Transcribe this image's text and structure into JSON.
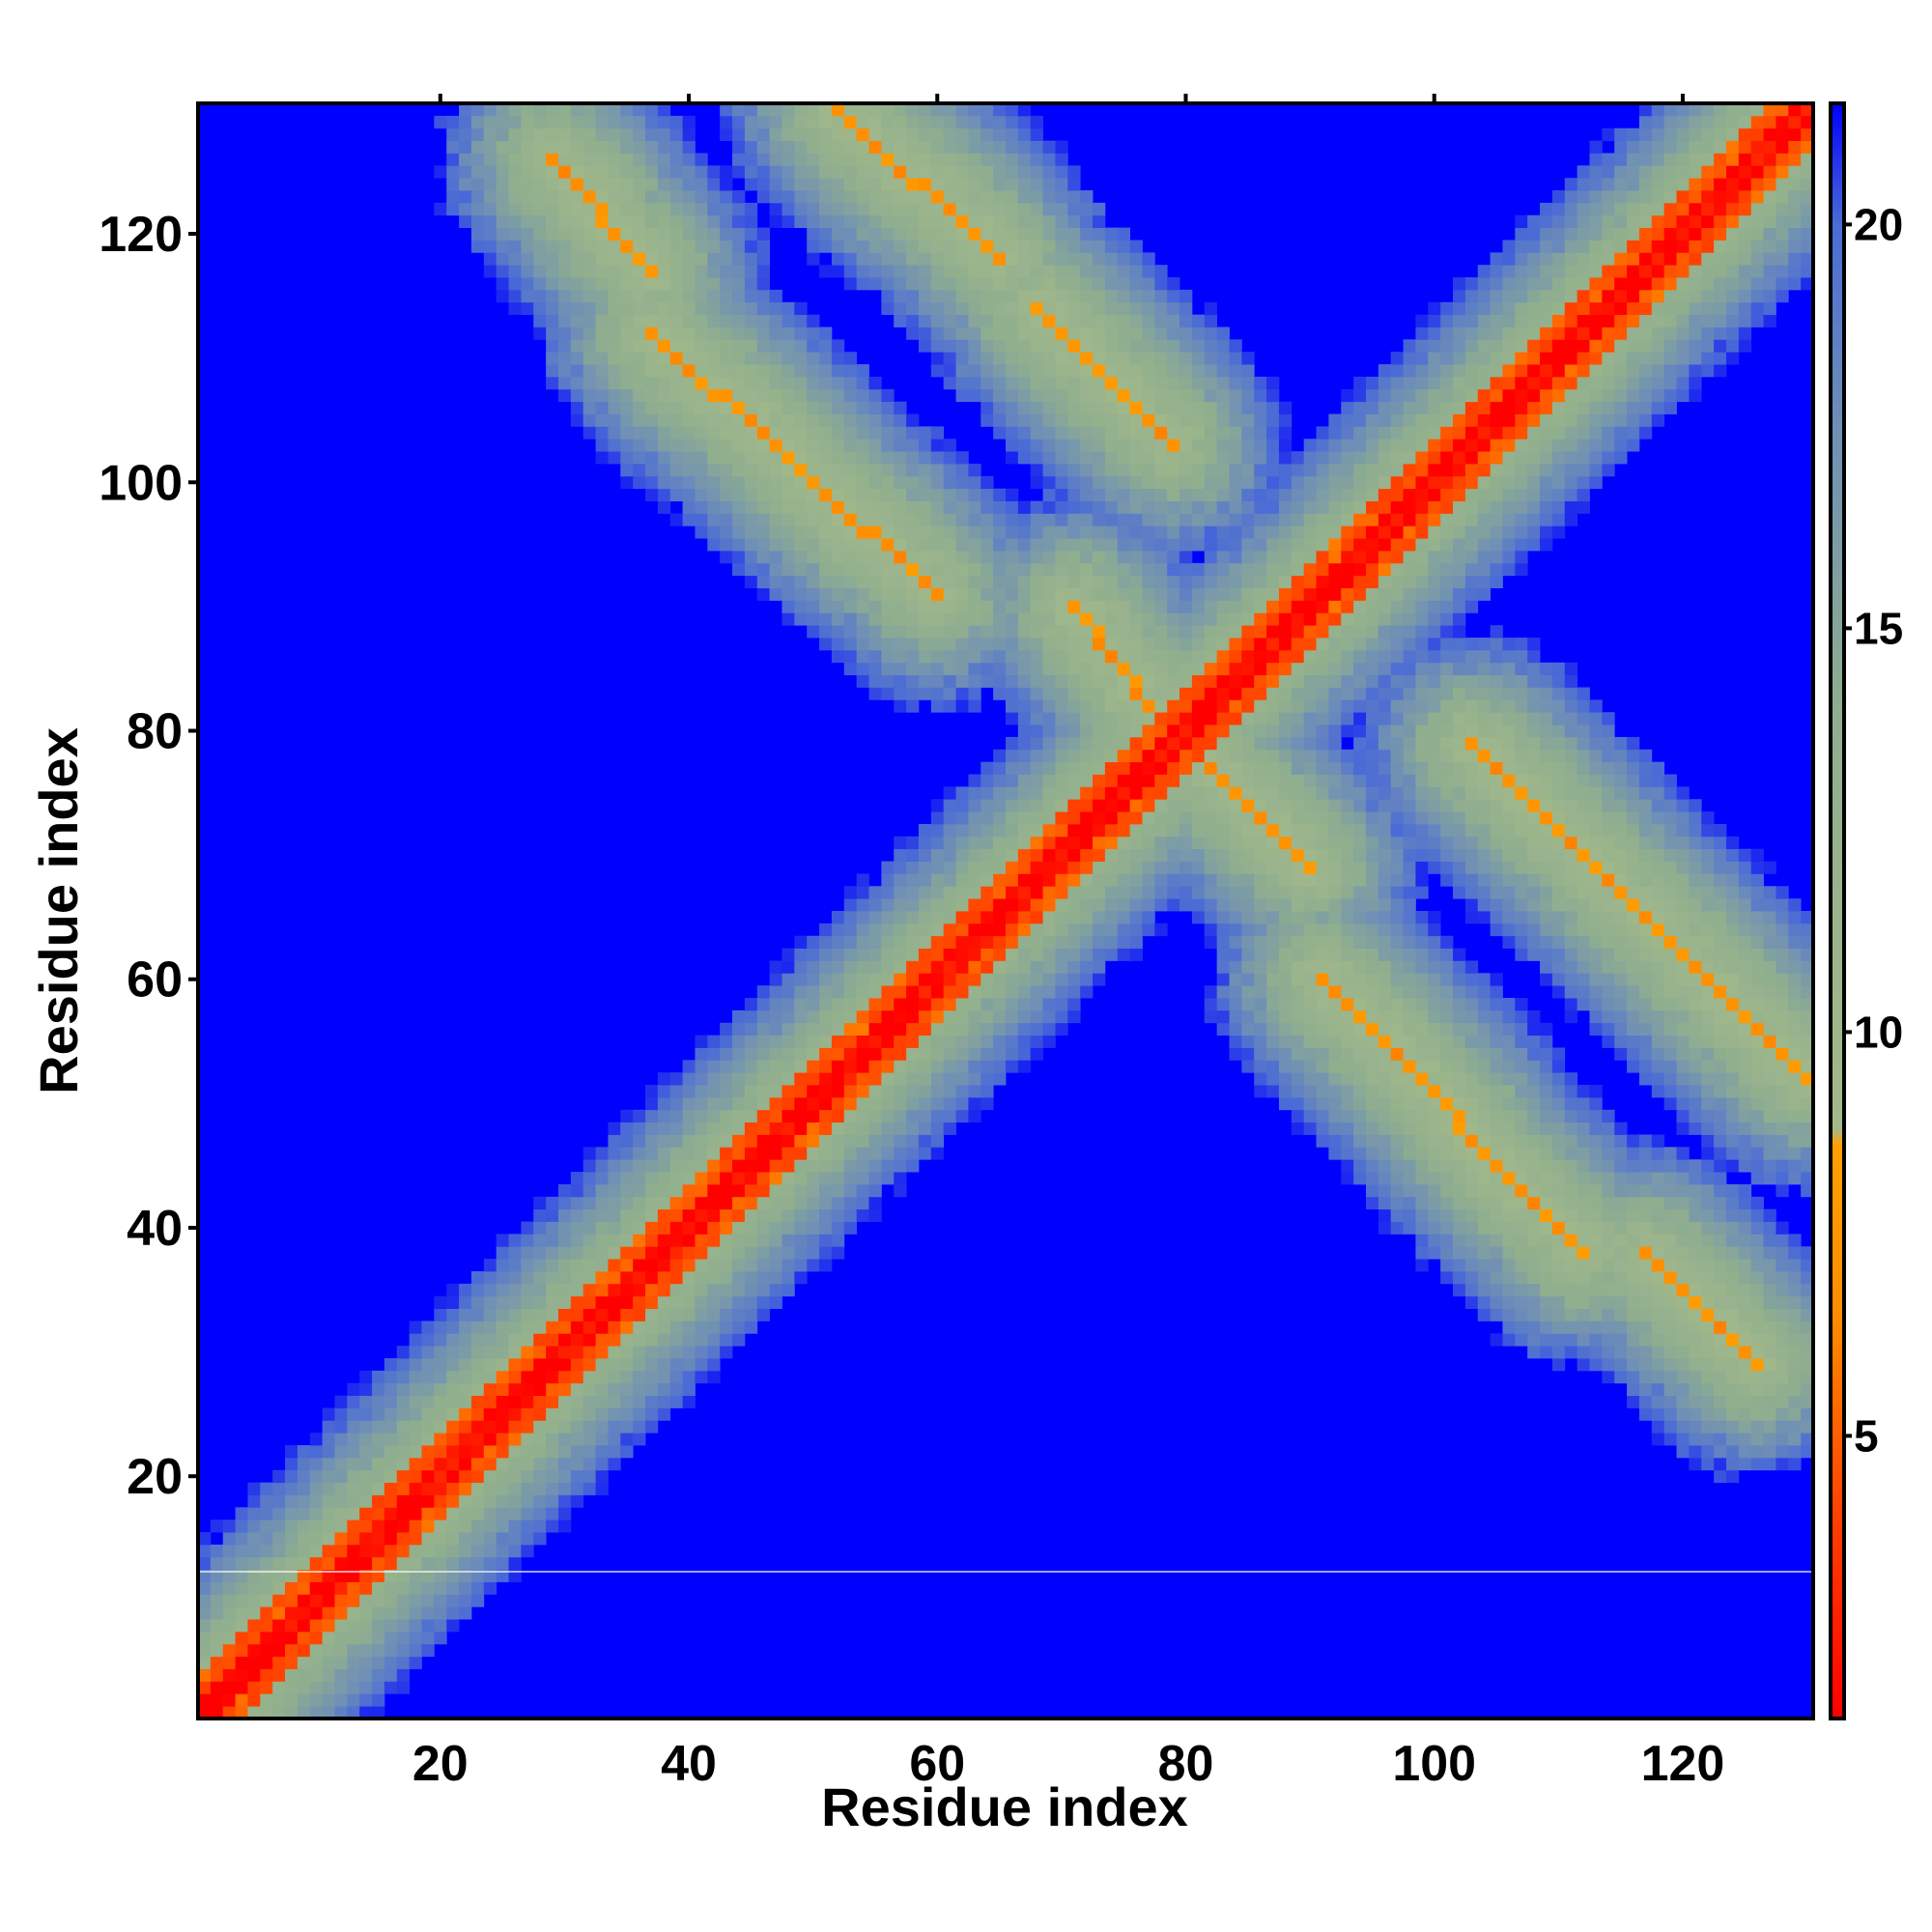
{
  "chart_data": {
    "type": "heatmap",
    "title": "",
    "xlabel": "Residue index",
    "ylabel": "Residue index",
    "n_residues": 130,
    "xlim": [
      1,
      130
    ],
    "ylim": [
      1,
      130
    ],
    "x_ticks": [
      20,
      40,
      60,
      80,
      100,
      120
    ],
    "y_ticks": [
      20,
      40,
      60,
      80,
      100,
      120
    ],
    "colorbar": {
      "range": [
        1.5,
        21.5
      ],
      "ticks": [
        5,
        10,
        15,
        20
      ],
      "stops": [
        {
          "value": 1.5,
          "color": "#ff0000"
        },
        {
          "value": 4.0,
          "color": "#ff4000"
        },
        {
          "value": 6.5,
          "color": "#ff8c00"
        },
        {
          "value": 8.6,
          "color": "#ffa000"
        },
        {
          "value": 8.8,
          "color": "#a4b98a"
        },
        {
          "value": 14.0,
          "color": "#8fae8f"
        },
        {
          "value": 17.5,
          "color": "#6f8fb6"
        },
        {
          "value": 20.0,
          "color": "#4b6bd6"
        },
        {
          "value": 21.5,
          "color": "#0000ff"
        }
      ],
      "background_color": "#0000ff"
    },
    "value_units": "distance",
    "features": [
      {
        "kind": "diagonal",
        "from": [
          1,
          1
        ],
        "to": [
          130,
          130
        ],
        "value": 2.0
      },
      {
        "kind": "antiparallel_band",
        "from": [
          29,
          126
        ],
        "to": [
          37,
          117
        ],
        "value": 6.5
      },
      {
        "kind": "antiparallel_band",
        "from": [
          52,
          130
        ],
        "to": [
          65,
          118
        ],
        "value": 6.5
      },
      {
        "kind": "antiparallel_band",
        "from": [
          37,
          112
        ],
        "to": [
          60,
          91
        ],
        "value": 6.5
      },
      {
        "kind": "antiparallel_band",
        "from": [
          68,
          114
        ],
        "to": [
          79,
          103
        ],
        "value": 6.5
      },
      {
        "kind": "antiparallel_band",
        "from": [
          71,
          90
        ],
        "to": [
          78,
          81
        ],
        "value": 6.5
      },
      {
        "kind": "antiparallel_band",
        "from": [
          82,
          77
        ],
        "to": [
          90,
          69
        ],
        "value": 6.5
      },
      {
        "kind": "antiparallel_band",
        "from": [
          103,
          79
        ],
        "to": [
          130,
          52
        ],
        "value": 6.5
      },
      {
        "kind": "antiparallel_band",
        "from": [
          91,
          60
        ],
        "to": [
          112,
          38
        ],
        "value": 6.5
      },
      {
        "kind": "antiparallel_band",
        "from": [
          117,
          38
        ],
        "to": [
          126,
          29
        ],
        "value": 6.5
      }
    ]
  }
}
